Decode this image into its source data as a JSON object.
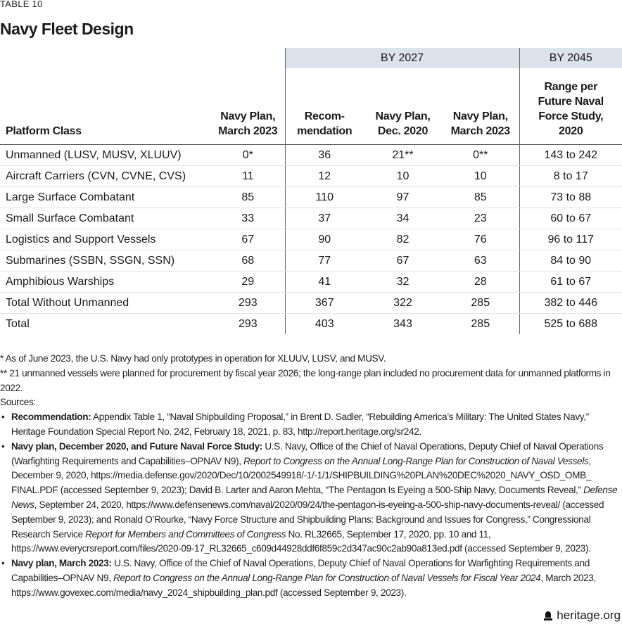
{
  "label": "TABLE 10",
  "title": "Navy Fleet Design",
  "groups": {
    "by2027": "BY 2027",
    "by2045": "BY 2045"
  },
  "columns": [
    "Platform Class",
    "Navy Plan, March 2023",
    "Recom- mendation",
    "Navy Plan, Dec. 2020",
    "Navy Plan, March 2023",
    "Range per Future Naval Force Study, 2020"
  ],
  "rows": [
    [
      "Unmanned (LUSV, MUSV, XLUUV)",
      "0*",
      "36",
      "21**",
      "0**",
      "143 to 242"
    ],
    [
      "Aircraft Carriers (CVN, CVNE, CVS)",
      "11",
      "12",
      "10",
      "10",
      "8 to 17"
    ],
    [
      "Large Surface Combatant",
      "85",
      "110",
      "97",
      "85",
      "73 to 88"
    ],
    [
      "Small Surface Combatant",
      "33",
      "37",
      "34",
      "23",
      "60 to 67"
    ],
    [
      "Logistics and Support Vessels",
      "67",
      "90",
      "82",
      "76",
      "96 to 117"
    ],
    [
      "Submarines (SSBN, SSGN, SSN)",
      "68",
      "77",
      "67",
      "63",
      "84 to 90"
    ],
    [
      "Amphibious Warships",
      "29",
      "41",
      "32",
      "28",
      "61 to 67"
    ],
    [
      "Total Without Unmanned",
      "293",
      "367",
      "322",
      "285",
      "382 to 446"
    ],
    [
      "Total",
      "293",
      "403",
      "343",
      "285",
      "525 to 688"
    ]
  ],
  "notes": {
    "note1": "* As of June 2023, the U.S. Navy had only prototypes in operation for XLUUV, LUSV, and MUSV.",
    "note2": "** 21 unmanned vessels were planned for procurement by fiscal year 2026; the long-range plan included no procurement data for unmanned platforms in 2022.",
    "sources_label": "Sources:",
    "sources": [
      [
        {
          "t": "Recommendation:",
          "s": "b"
        },
        {
          "t": " Appendix Table 1, “Naval Shipbuilding Proposal,” in Brent D. Sadler, “Rebuilding America’s Military: The United States Navy,” Heritage Foundation Special Report No. 242, February 18, 2021, p. 83, http://report.heritage.org/sr242.",
          "s": ""
        }
      ],
      [
        {
          "t": "Navy plan, December 2020, and Future Naval Force Study:",
          "s": "b"
        },
        {
          "t": " U.S. Navy, Office of the Chief of Naval Operations, Deputy Chief of Naval Operations (Warfighting Requirements and Capabilities–OPNAV N9), ",
          "s": ""
        },
        {
          "t": "Report to Congress on the Annual Long-Range Plan for Construction of Naval Vessels",
          "s": "i"
        },
        {
          "t": ", December 9, 2020, https://media.defense.gov/2020/Dec/10/2002549918/-1/-1/1/SHIPBUILDING%20PLAN%20DEC%2020_NAVY_OSD_OMB_ FINAL.PDF (accessed September 9, 2023); David B. Larter and Aaron Mehta, “The Pentagon Is Eyeing a 500-Ship Navy, Documents Reveal,” ",
          "s": ""
        },
        {
          "t": "Defense News",
          "s": "i"
        },
        {
          "t": ", September 24, 2020, https://www.defensenews.com/naval/2020/09/24/the-pentagon-is-eyeing-a-500-ship-navy-documents-reveal/ (accessed September 9, 2023); and Ronald O’Rourke, “Navy Force Structure and Shipbuilding Plans: Background and Issues for Congress,” Congressional Research Service ",
          "s": ""
        },
        {
          "t": "Report for Members and Committees of Congress",
          "s": "i"
        },
        {
          "t": " No. RL32665, September 17, 2020, pp. 10 and 11, https://www.everycrsreport.com/files/2020-09-17_RL32665_c609d44928ddf6f859c2d347ac90c2ab90a813ed.pdf (accessed September 9, 2023).",
          "s": ""
        }
      ],
      [
        {
          "t": "Navy plan, March 2023:",
          "s": "b"
        },
        {
          "t": " U.S. Navy, Office of the Chief of Naval Operations, Deputy Chief of Naval Operations for Warfighting Requirements and Capabilities–OPNAV N9, ",
          "s": ""
        },
        {
          "t": "Report to Congress on the Annual Long-Range Plan for Construction of Naval Vessels for Fiscal Year 2024",
          "s": "i"
        },
        {
          "t": ", March 2023, https://www.govexec.com/media/navy_2024_shipbuilding_plan.pdf  (accessed September 9, 2023).",
          "s": ""
        }
      ]
    ]
  },
  "footer": {
    "logo_icon": "liberty-bell-icon",
    "site": "heritage.org"
  }
}
